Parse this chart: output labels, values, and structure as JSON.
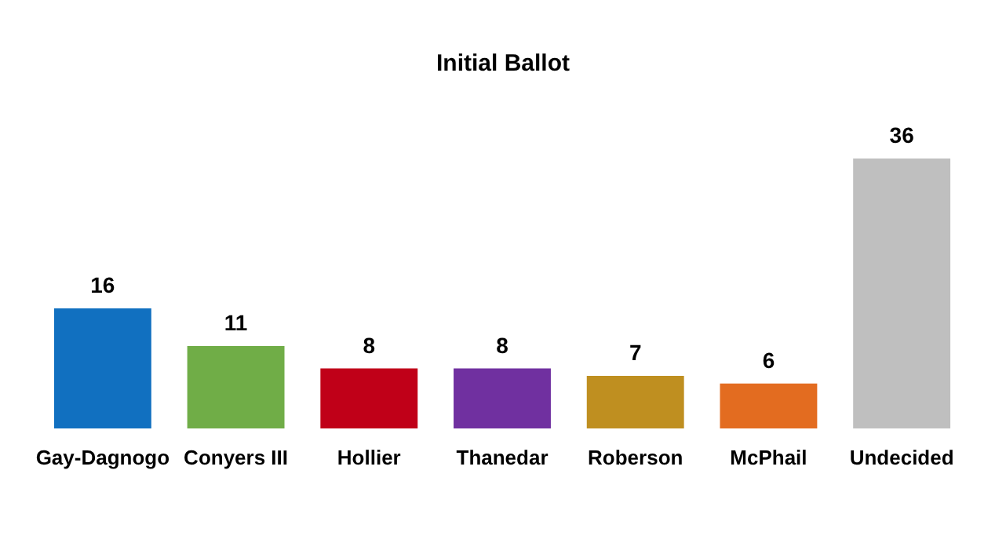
{
  "chart_data": {
    "type": "bar",
    "title": "Initial Ballot",
    "categories": [
      "Gay-Dagnogo",
      "Conyers III",
      "Hollier",
      "Thanedar",
      "Roberson",
      "McPhail",
      "Undecided"
    ],
    "values": [
      16,
      11,
      8,
      8,
      7,
      6,
      36
    ],
    "colors": [
      "#1170c0",
      "#70ad47",
      "#c00018",
      "#7030a0",
      "#bf8f20",
      "#e36c20",
      "#bfbfbf"
    ],
    "data_labels": true
  }
}
